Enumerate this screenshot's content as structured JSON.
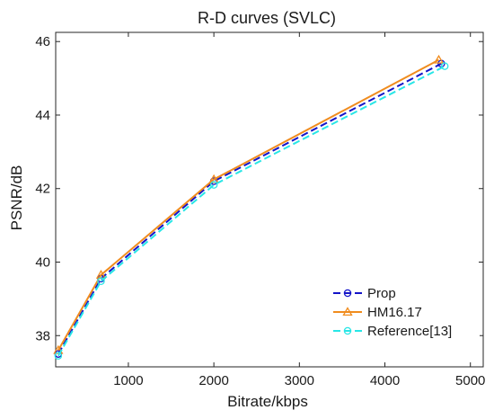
{
  "chart_data": {
    "type": "line",
    "title": "R-D curves (SVLC)",
    "xlabel": "Bitrate/kbps",
    "ylabel": "PSNR/dB",
    "xlim": [
      150,
      5150
    ],
    "ylim": [
      37.15,
      46.25
    ],
    "xticks": [
      1000,
      2000,
      3000,
      4000,
      5000
    ],
    "xtick_labels": [
      "1000",
      "2000",
      "3000",
      "4000",
      "5000"
    ],
    "yticks": [
      38,
      40,
      42,
      44,
      46
    ],
    "ytick_labels": [
      "38",
      "40",
      "42",
      "44",
      "46"
    ],
    "grid": false,
    "legend_position": "bottom-right",
    "series": [
      {
        "name": "Prop",
        "color": "#1414c8",
        "dash": "dashed",
        "marker": "circle",
        "x": [
          180,
          680,
          2000,
          4660
        ],
        "y": [
          37.5,
          39.55,
          42.2,
          45.4
        ]
      },
      {
        "name": "HM16.17",
        "color": "#f08c1e",
        "dash": "solid",
        "marker": "triangle",
        "x": [
          180,
          680,
          2000,
          4630
        ],
        "y": [
          37.6,
          39.65,
          42.25,
          45.5
        ]
      },
      {
        "name": "Reference[13]",
        "color": "#28e6e6",
        "dash": "dashed",
        "marker": "circle",
        "x": [
          180,
          680,
          2000,
          4700
        ],
        "y": [
          37.45,
          39.48,
          42.1,
          45.33
        ]
      }
    ]
  }
}
